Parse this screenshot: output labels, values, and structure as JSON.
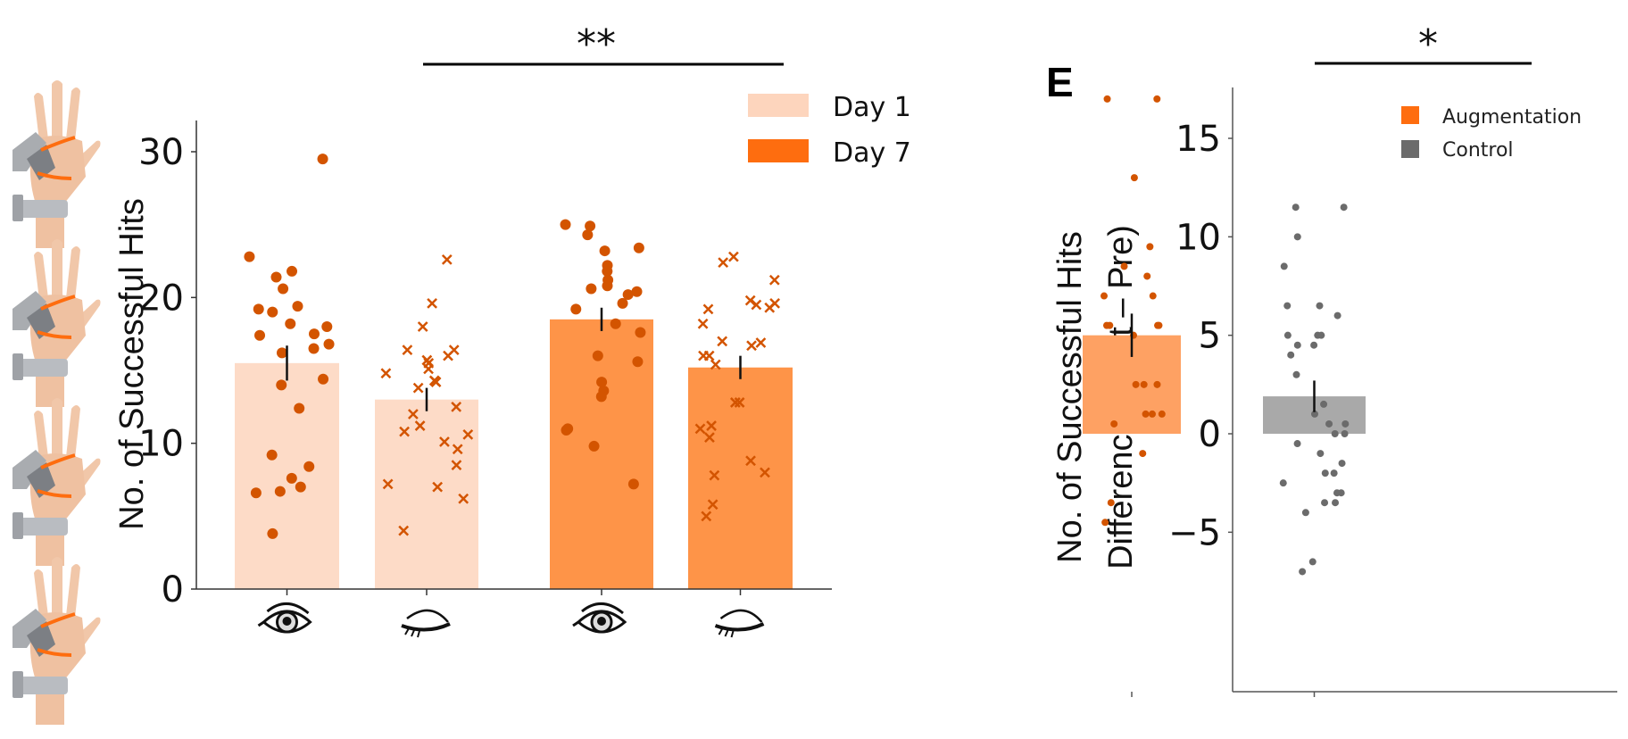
{
  "chart_data": [
    {
      "type": "bar",
      "panel": "",
      "title": "",
      "xlabel": "",
      "ylabel": "No. of Successful Hits",
      "ylim": [
        0,
        32
      ],
      "yticks": [
        0,
        10,
        20,
        30
      ],
      "categories": [
        "Day 1 – eyes open",
        "Day 1 – eyes closed",
        "Day 7 – eyes open",
        "Day 7 – eyes closed"
      ],
      "category_icons": [
        "eye-open-icon",
        "eye-closed-icon",
        "eye-open-icon",
        "eye-closed-icon"
      ],
      "legend": [
        {
          "label": "Day 1",
          "color": "#fdd5bd"
        },
        {
          "label": "Day 7",
          "color": "#fe6d0f"
        }
      ],
      "legend_position": "top-right",
      "series": [
        {
          "name": "Day 1",
          "condition": "eyes open",
          "mean": 15.5,
          "sem": 1.2,
          "bar_color": "#fddbc7",
          "marker": "circle",
          "points": [
            29.5,
            22.8,
            21.8,
            21.4,
            20.6,
            19.4,
            19.2,
            19.0,
            18.2,
            18.0,
            17.5,
            17.4,
            16.8,
            16.5,
            16.2,
            14.4,
            14.0,
            12.4,
            9.2,
            8.4,
            7.6,
            7.0,
            6.7,
            6.6,
            3.8
          ]
        },
        {
          "name": "Day 1",
          "condition": "eyes closed",
          "mean": 13.0,
          "sem": 0.8,
          "bar_color": "#fddbc7",
          "marker": "x",
          "points": [
            22.6,
            19.6,
            18.0,
            16.4,
            16.4,
            16.0,
            15.7,
            15.5,
            15.1,
            14.8,
            14.3,
            14.2,
            13.8,
            12.5,
            12.0,
            11.2,
            10.8,
            10.6,
            10.1,
            9.6,
            8.5,
            7.2,
            7.0,
            6.2,
            4.0
          ]
        },
        {
          "name": "Day 7",
          "condition": "eyes open",
          "mean": 18.5,
          "sem": 0.8,
          "bar_color": "#fe9448",
          "marker": "circle",
          "points": [
            25.0,
            24.9,
            24.3,
            23.4,
            23.2,
            22.2,
            21.8,
            21.2,
            20.8,
            20.6,
            20.4,
            20.2,
            19.2,
            19.6,
            18.2,
            17.6,
            16.0,
            15.6,
            14.2,
            13.6,
            13.2,
            11.0,
            10.9,
            9.8,
            7.2
          ]
        },
        {
          "name": "Day 7",
          "condition": "eyes closed",
          "mean": 15.2,
          "sem": 0.8,
          "bar_color": "#fe9448",
          "marker": "x",
          "points": [
            22.8,
            22.4,
            21.2,
            19.8,
            19.6,
            19.5,
            19.2,
            19.3,
            18.2,
            17.0,
            16.9,
            16.7,
            16.0,
            16.0,
            15.4,
            12.8,
            12.8,
            11.2,
            11.0,
            10.4,
            8.8,
            8.0,
            7.8,
            5.8,
            5.0
          ]
        }
      ],
      "significance": {
        "label": "**",
        "between": [
          "Day 1 – eyes closed",
          "Day 7 – eyes closed"
        ]
      }
    },
    {
      "type": "bar",
      "panel": "E",
      "title": "",
      "xlabel": "",
      "ylabel": "No. of Successful Hits\nDifference (Post – Pre)",
      "ylabel_lines": [
        "No. of Successful Hits",
        "Difference (Post – Pre)"
      ],
      "ylim": [
        -8,
        18
      ],
      "yticks": [
        -5,
        0,
        5,
        10,
        15
      ],
      "ytick_labels": [
        "−5",
        "0",
        "5",
        "10",
        "15"
      ],
      "categories": [
        "Augmentation",
        "Control"
      ],
      "legend": [
        {
          "label": "Augmentation",
          "color": "#fe6d0f"
        },
        {
          "label": "Control",
          "color": "#6b6b6b"
        }
      ],
      "legend_position": "top-right",
      "series": [
        {
          "name": "Augmentation",
          "mean": 5.0,
          "sem": 1.1,
          "bar_color": "#fea163",
          "point_color": "#d35400",
          "points": [
            17.0,
            17.0,
            13.0,
            9.5,
            8.5,
            8.0,
            7.0,
            7.0,
            5.5,
            5.5,
            5.5,
            5.5,
            5.0,
            2.5,
            2.5,
            2.5,
            1.0,
            1.0,
            1.0,
            0.5,
            -1.0,
            -3.5,
            -4.5
          ]
        },
        {
          "name": "Control",
          "mean": 1.9,
          "sem": 0.8,
          "bar_color": "#a9a9a9",
          "point_color": "#6b6b6b",
          "points": [
            11.5,
            11.5,
            10.0,
            8.5,
            6.5,
            6.5,
            6.0,
            5.0,
            5.0,
            5.0,
            4.5,
            4.5,
            4.0,
            3.0,
            1.5,
            1.0,
            0.5,
            0.5,
            0.0,
            0.0,
            -0.5,
            -1.0,
            -1.5,
            -2.0,
            -2.0,
            -2.5,
            -3.0,
            -3.0,
            -3.5,
            -3.5,
            -4.0,
            -6.5,
            -7.0
          ]
        }
      ],
      "significance": {
        "label": "*",
        "between": [
          "Augmentation",
          "Control"
        ]
      }
    }
  ],
  "figure": {
    "panel_letter": "E",
    "left_images": [
      "hand-with-robotic-thumb-image",
      "hand-with-robotic-thumb-image",
      "hand-with-robotic-thumb-image",
      "hand-with-robotic-thumb-image"
    ],
    "colors": {
      "point_orange": "#d35400",
      "day1_bar": "#fddbc7",
      "day7_bar": "#fe9448",
      "aug_bar": "#fea163",
      "control_bar": "#a9a9a9",
      "control_point": "#6b6b6b",
      "axis": "#333333"
    }
  }
}
